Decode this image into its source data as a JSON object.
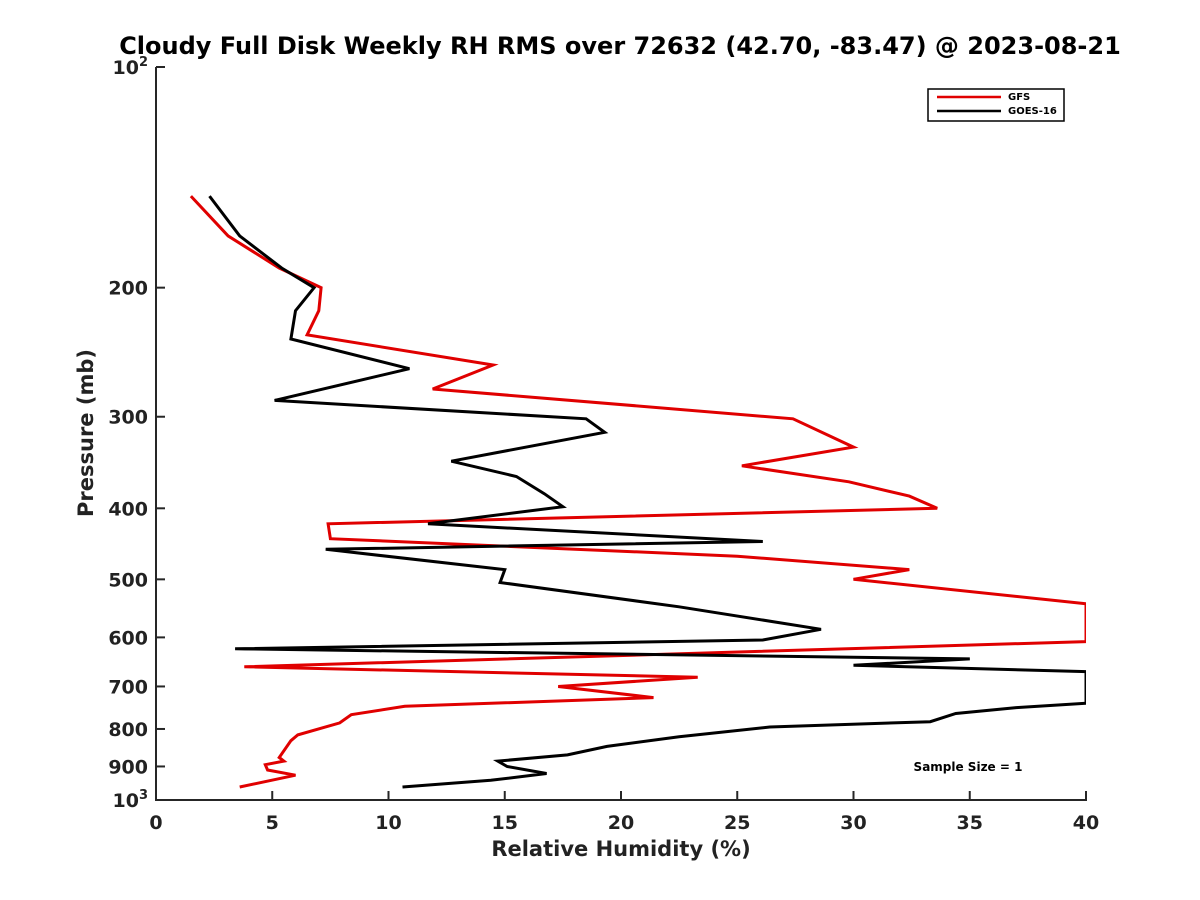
{
  "chart_data": {
    "type": "line",
    "title": "Cloudy Full Disk Weekly RH RMS over 72632 (42.70, -83.47) @ 2023-08-21",
    "xlabel": "Relative Humidity (%)",
    "ylabel": "Pressure (mb)",
    "xlim": [
      0,
      40
    ],
    "ylim": [
      1000,
      100
    ],
    "y_scale": "log",
    "y_reversed": true,
    "grid": false,
    "legend_position": "top-right",
    "annotation": "Sample Size = 1",
    "x_ticks": [
      0,
      5,
      10,
      15,
      20,
      25,
      30,
      35,
      40
    ],
    "x_tick_labels": [
      "0",
      "5",
      "10",
      "15",
      "20",
      "25",
      "30",
      "35",
      "40"
    ],
    "y_ticks": [
      100,
      200,
      300,
      400,
      500,
      600,
      700,
      800,
      900,
      1000
    ],
    "y_tick_labels": [
      {
        "base": "10",
        "exp": "2"
      },
      {
        "base": "200",
        "exp": ""
      },
      {
        "base": "300",
        "exp": ""
      },
      {
        "base": "400",
        "exp": ""
      },
      {
        "base": "500",
        "exp": ""
      },
      {
        "base": "600",
        "exp": ""
      },
      {
        "base": "700",
        "exp": ""
      },
      {
        "base": "800",
        "exp": ""
      },
      {
        "base": "900",
        "exp": ""
      },
      {
        "base": "10",
        "exp": "3"
      }
    ],
    "series": [
      {
        "name": "GFS",
        "color": "#e00000",
        "points": [
          [
            1.5,
            150
          ],
          [
            3.1,
            170
          ],
          [
            5.3,
            188
          ],
          [
            7.1,
            200
          ],
          [
            7.0,
            215
          ],
          [
            6.5,
            232
          ],
          [
            14.5,
            255
          ],
          [
            11.9,
            275
          ],
          [
            27.4,
            302
          ],
          [
            30.0,
            330
          ],
          [
            25.2,
            350
          ],
          [
            29.8,
            368
          ],
          [
            32.4,
            385
          ],
          [
            33.6,
            400
          ],
          [
            7.4,
            420
          ],
          [
            7.5,
            440
          ],
          [
            25.0,
            465
          ],
          [
            32.4,
            485
          ],
          [
            30.0,
            500
          ],
          [
            40.0,
            540
          ],
          [
            40.0,
            608
          ],
          [
            3.8,
            658
          ],
          [
            23.3,
            680
          ],
          [
            17.3,
            700
          ],
          [
            21.4,
            725
          ],
          [
            10.7,
            745
          ],
          [
            8.4,
            765
          ],
          [
            7.9,
            785
          ],
          [
            6.1,
            815
          ],
          [
            5.8,
            830
          ],
          [
            5.3,
            875
          ],
          [
            5.5,
            885
          ],
          [
            4.7,
            895
          ],
          [
            4.8,
            910
          ],
          [
            6.0,
            925
          ],
          [
            3.6,
            960
          ]
        ]
      },
      {
        "name": "GOES-16",
        "color": "#000000",
        "points": [
          [
            2.3,
            150
          ],
          [
            3.6,
            170
          ],
          [
            5.4,
            188
          ],
          [
            6.8,
            200
          ],
          [
            6.0,
            215
          ],
          [
            5.8,
            235
          ],
          [
            10.9,
            258
          ],
          [
            5.1,
            285
          ],
          [
            18.5,
            302
          ],
          [
            19.3,
            315
          ],
          [
            12.7,
            345
          ],
          [
            15.5,
            362
          ],
          [
            16.7,
            382
          ],
          [
            17.5,
            398
          ],
          [
            11.7,
            420
          ],
          [
            26.1,
            444
          ],
          [
            7.3,
            455
          ],
          [
            15.0,
            485
          ],
          [
            14.8,
            505
          ],
          [
            22.5,
            545
          ],
          [
            28.6,
            585
          ],
          [
            26.1,
            605
          ],
          [
            3.4,
            622
          ],
          [
            35.0,
            642
          ],
          [
            30.0,
            655
          ],
          [
            40.0,
            668
          ],
          [
            40.0,
            738
          ],
          [
            37.0,
            748
          ],
          [
            34.4,
            762
          ],
          [
            33.3,
            782
          ],
          [
            26.4,
            795
          ],
          [
            22.5,
            820
          ],
          [
            19.4,
            845
          ],
          [
            17.7,
            868
          ],
          [
            14.7,
            885
          ],
          [
            15.1,
            900
          ],
          [
            16.8,
            920
          ],
          [
            14.4,
            940
          ],
          [
            10.6,
            960
          ]
        ]
      }
    ]
  }
}
